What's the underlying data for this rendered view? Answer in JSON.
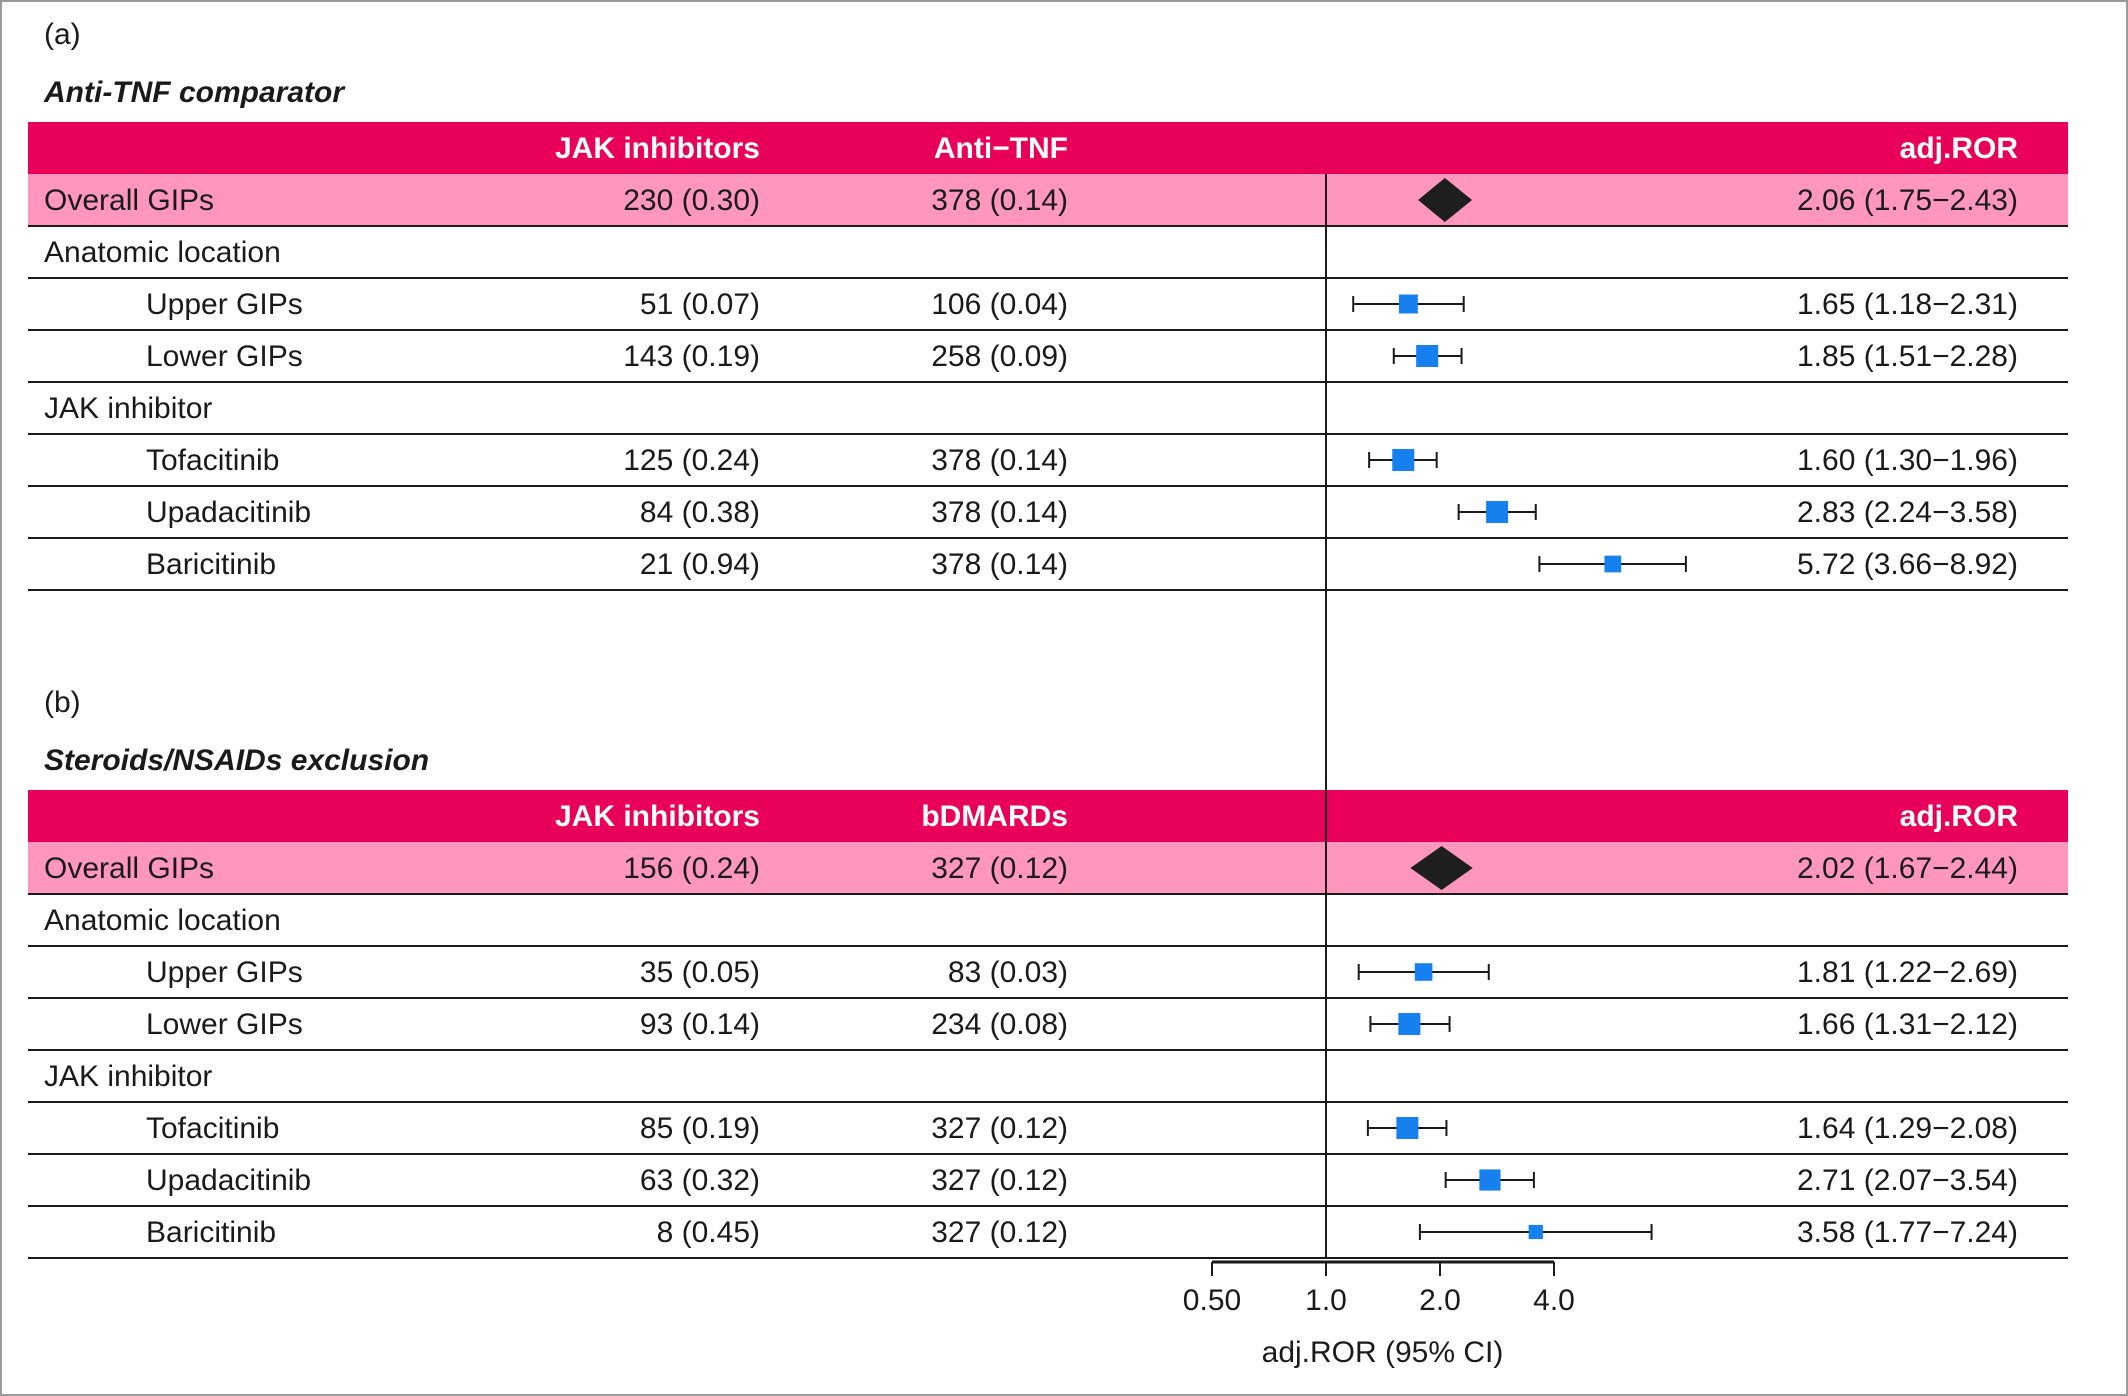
{
  "chart_data": {
    "type": "forest",
    "x_scale": "log",
    "xlabel": "adj.ROR (95% CI)",
    "x_ticks": [
      {
        "value": 0.5,
        "label": "0.50"
      },
      {
        "value": 1.0,
        "label": "1.0"
      },
      {
        "value": 2.0,
        "label": "2.0"
      },
      {
        "value": 4.0,
        "label": "4.0"
      }
    ],
    "reference_line": 1.0,
    "colors": {
      "header_bg": "#e8005a",
      "overall_bg": "#ff96bd",
      "marker": "#1580ee",
      "diamond": "#1e1e1e"
    },
    "panels": [
      {
        "label": "(a)",
        "title": "Anti-TNF comparator",
        "col1_header": "JAK inhibitors",
        "col2_header": "Anti−TNF",
        "col3_header": "adj.ROR",
        "rows": [
          {
            "kind": "overall",
            "label": "Overall GIPs",
            "col1": "230 (0.30)",
            "col2": "378 (0.14)",
            "est": 2.06,
            "lo": 1.75,
            "hi": 2.43,
            "text": "2.06 (1.75−2.43)"
          },
          {
            "kind": "group",
            "label": "Anatomic location"
          },
          {
            "kind": "item",
            "label": "Upper GIPs",
            "col1": "51 (0.07)",
            "col2": "106 (0.04)",
            "est": 1.65,
            "lo": 1.18,
            "hi": 2.31,
            "text": "1.65 (1.18−2.31)"
          },
          {
            "kind": "item",
            "label": "Lower GIPs",
            "col1": "143 (0.19)",
            "col2": "258 (0.09)",
            "est": 1.85,
            "lo": 1.51,
            "hi": 2.28,
            "text": "1.85 (1.51−2.28)"
          },
          {
            "kind": "group",
            "label": "JAK inhibitor"
          },
          {
            "kind": "item",
            "label": "Tofacitinib",
            "col1": "125 (0.24)",
            "col2": "378 (0.14)",
            "est": 1.6,
            "lo": 1.3,
            "hi": 1.96,
            "text": "1.60 (1.30−1.96)"
          },
          {
            "kind": "item",
            "label": "Upadacitinib",
            "col1": "84 (0.38)",
            "col2": "378 (0.14)",
            "est": 2.83,
            "lo": 2.24,
            "hi": 3.58,
            "text": "2.83 (2.24−3.58)"
          },
          {
            "kind": "item",
            "label": "Baricitinib",
            "col1": "21 (0.94)",
            "col2": "378 (0.14)",
            "est": 5.72,
            "lo": 3.66,
            "hi": 8.92,
            "text": "5.72 (3.66−8.92)"
          }
        ]
      },
      {
        "label": "(b)",
        "title": "Steroids/NSAIDs exclusion",
        "col1_header": "JAK inhibitors",
        "col2_header": "bDMARDs",
        "col3_header": "adj.ROR",
        "rows": [
          {
            "kind": "overall",
            "label": "Overall GIPs",
            "col1": "156 (0.24)",
            "col2": "327 (0.12)",
            "est": 2.02,
            "lo": 1.67,
            "hi": 2.44,
            "text": "2.02 (1.67−2.44)"
          },
          {
            "kind": "group",
            "label": "Anatomic location"
          },
          {
            "kind": "item",
            "label": "Upper GIPs",
            "col1": "35 (0.05)",
            "col2": "83 (0.03)",
            "est": 1.81,
            "lo": 1.22,
            "hi": 2.69,
            "text": "1.81 (1.22−2.69)"
          },
          {
            "kind": "item",
            "label": "Lower GIPs",
            "col1": "93 (0.14)",
            "col2": "234 (0.08)",
            "est": 1.66,
            "lo": 1.31,
            "hi": 2.12,
            "text": "1.66 (1.31−2.12)"
          },
          {
            "kind": "group",
            "label": "JAK inhibitor"
          },
          {
            "kind": "item",
            "label": "Tofacitinib",
            "col1": "85 (0.19)",
            "col2": "327 (0.12)",
            "est": 1.64,
            "lo": 1.29,
            "hi": 2.08,
            "text": "1.64 (1.29−2.08)"
          },
          {
            "kind": "item",
            "label": "Upadacitinib",
            "col1": "63 (0.32)",
            "col2": "327 (0.12)",
            "est": 2.71,
            "lo": 2.07,
            "hi": 3.54,
            "text": "2.71 (2.07−3.54)"
          },
          {
            "kind": "item",
            "label": "Baricitinib",
            "col1": "8 (0.45)",
            "col2": "327 (0.12)",
            "est": 3.58,
            "lo": 1.77,
            "hi": 7.24,
            "text": "3.58 (1.77−7.24)"
          }
        ]
      }
    ]
  }
}
